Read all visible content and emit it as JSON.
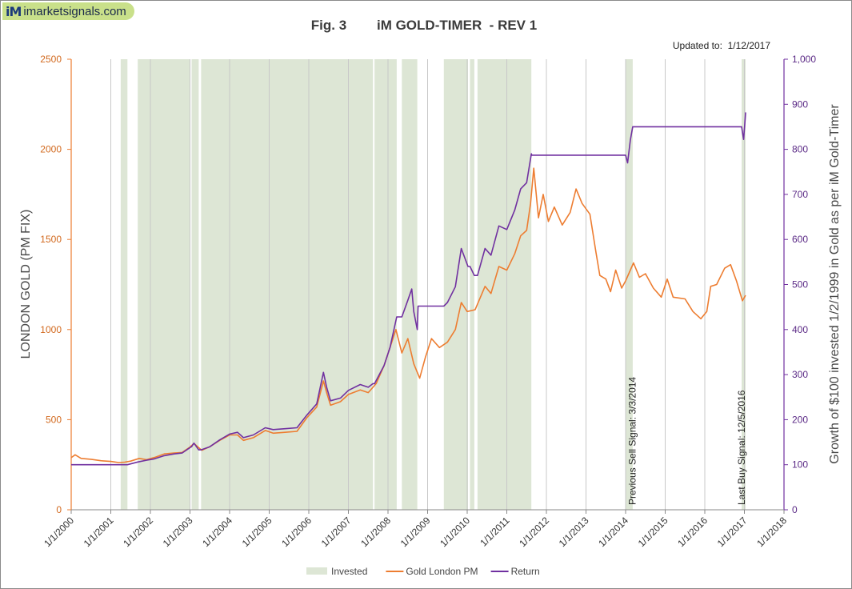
{
  "logo": {
    "mark": "iM",
    "site": "imarketsignals.com"
  },
  "chart_data": {
    "type": "line",
    "title": "Fig. 3        iM GOLD-TIMER  - REV 1",
    "updated_label": "Updated to:  1/12/2017",
    "ylabel_left": "LONDON GOLD (PM FIX)",
    "ylabel_right": "Growth of $100 invested 1/2/1999 in Gold as per iM Gold-Timer",
    "ylim_left": [
      0,
      2500
    ],
    "yticks_left": [
      "0",
      "500",
      "1000",
      "1500",
      "2000",
      "2500"
    ],
    "ylim_right": [
      0,
      1000
    ],
    "yticks_right": [
      "0",
      "100",
      "200",
      "300",
      "400",
      "500",
      "600",
      "700",
      "800",
      "900",
      "1,000"
    ],
    "xlim": [
      2000,
      2018
    ],
    "xticks": [
      "1/1/2000",
      "1/1/2001",
      "1/1/2002",
      "1/1/2003",
      "1/1/2004",
      "1/1/2005",
      "1/1/2006",
      "1/1/2007",
      "1/1/2008",
      "1/1/2009",
      "1/1/2010",
      "1/1/2011",
      "1/1/2012",
      "1/1/2013",
      "1/1/2014",
      "1/1/2015",
      "1/1/2016",
      "1/1/2017",
      "1/1/2018"
    ],
    "grid": "x-major",
    "legend_position": "bottom",
    "invested_periods": [
      [
        2001.25,
        2001.42
      ],
      [
        2001.68,
        2003.0
      ],
      [
        2003.04,
        2003.22
      ],
      [
        2003.28,
        2007.62
      ],
      [
        2007.66,
        2008.22
      ],
      [
        2008.35,
        2008.74
      ],
      [
        2009.41,
        2010.02
      ],
      [
        2010.07,
        2010.18
      ],
      [
        2010.26,
        2011.62
      ],
      [
        2014.0,
        2014.18
      ],
      [
        2016.93,
        2017.03
      ]
    ],
    "series": [
      {
        "name": "Gold London PM",
        "color": "#ed7d31",
        "axis": "left",
        "points": [
          [
            2000.0,
            289
          ],
          [
            2000.1,
            305
          ],
          [
            2000.25,
            285
          ],
          [
            2000.5,
            280
          ],
          [
            2000.75,
            272
          ],
          [
            2001.0,
            268
          ],
          [
            2001.2,
            262
          ],
          [
            2001.35,
            264
          ],
          [
            2001.5,
            270
          ],
          [
            2001.72,
            285
          ],
          [
            2001.9,
            278
          ],
          [
            2002.1,
            290
          ],
          [
            2002.35,
            310
          ],
          [
            2002.6,
            315
          ],
          [
            2002.8,
            318
          ],
          [
            2003.0,
            348
          ],
          [
            2003.1,
            368
          ],
          [
            2003.3,
            330
          ],
          [
            2003.5,
            350
          ],
          [
            2003.75,
            385
          ],
          [
            2004.0,
            415
          ],
          [
            2004.2,
            415
          ],
          [
            2004.35,
            385
          ],
          [
            2004.6,
            400
          ],
          [
            2004.9,
            440
          ],
          [
            2005.1,
            425
          ],
          [
            2005.4,
            430
          ],
          [
            2005.7,
            435
          ],
          [
            2005.95,
            510
          ],
          [
            2006.2,
            570
          ],
          [
            2006.37,
            715
          ],
          [
            2006.45,
            650
          ],
          [
            2006.55,
            580
          ],
          [
            2006.8,
            600
          ],
          [
            2007.0,
            640
          ],
          [
            2007.3,
            665
          ],
          [
            2007.5,
            650
          ],
          [
            2007.7,
            700
          ],
          [
            2007.9,
            800
          ],
          [
            2008.05,
            900
          ],
          [
            2008.2,
            1000
          ],
          [
            2008.35,
            870
          ],
          [
            2008.5,
            950
          ],
          [
            2008.65,
            810
          ],
          [
            2008.8,
            730
          ],
          [
            2008.95,
            850
          ],
          [
            2009.1,
            950
          ],
          [
            2009.3,
            900
          ],
          [
            2009.5,
            930
          ],
          [
            2009.7,
            1000
          ],
          [
            2009.85,
            1150
          ],
          [
            2010.0,
            1100
          ],
          [
            2010.2,
            1110
          ],
          [
            2010.45,
            1240
          ],
          [
            2010.6,
            1200
          ],
          [
            2010.8,
            1350
          ],
          [
            2011.0,
            1330
          ],
          [
            2011.2,
            1420
          ],
          [
            2011.35,
            1520
          ],
          [
            2011.5,
            1550
          ],
          [
            2011.6,
            1700
          ],
          [
            2011.68,
            1895
          ],
          [
            2011.8,
            1620
          ],
          [
            2011.92,
            1750
          ],
          [
            2012.05,
            1600
          ],
          [
            2012.2,
            1680
          ],
          [
            2012.4,
            1580
          ],
          [
            2012.6,
            1650
          ],
          [
            2012.75,
            1780
          ],
          [
            2012.9,
            1700
          ],
          [
            2013.1,
            1640
          ],
          [
            2013.25,
            1430
          ],
          [
            2013.35,
            1300
          ],
          [
            2013.5,
            1280
          ],
          [
            2013.62,
            1210
          ],
          [
            2013.75,
            1330
          ],
          [
            2013.9,
            1230
          ],
          [
            2014.0,
            1270
          ],
          [
            2014.2,
            1370
          ],
          [
            2014.35,
            1290
          ],
          [
            2014.5,
            1310
          ],
          [
            2014.7,
            1230
          ],
          [
            2014.9,
            1180
          ],
          [
            2015.05,
            1280
          ],
          [
            2015.2,
            1180
          ],
          [
            2015.5,
            1170
          ],
          [
            2015.7,
            1100
          ],
          [
            2015.9,
            1060
          ],
          [
            2016.05,
            1100
          ],
          [
            2016.15,
            1240
          ],
          [
            2016.3,
            1250
          ],
          [
            2016.5,
            1340
          ],
          [
            2016.65,
            1360
          ],
          [
            2016.8,
            1270
          ],
          [
            2016.95,
            1160
          ],
          [
            2017.03,
            1190
          ]
        ]
      },
      {
        "name": "Return",
        "color": "#7030a0",
        "axis": "right",
        "points": [
          [
            2000.0,
            100
          ],
          [
            2001.25,
            100
          ],
          [
            2001.42,
            100
          ],
          [
            2001.68,
            106
          ],
          [
            2001.9,
            110
          ],
          [
            2002.1,
            113
          ],
          [
            2002.35,
            120
          ],
          [
            2002.6,
            124
          ],
          [
            2002.8,
            126
          ],
          [
            2003.0,
            138
          ],
          [
            2003.04,
            140
          ],
          [
            2003.1,
            148
          ],
          [
            2003.22,
            133
          ],
          [
            2003.28,
            133
          ],
          [
            2003.5,
            140
          ],
          [
            2003.75,
            155
          ],
          [
            2004.0,
            168
          ],
          [
            2004.2,
            172
          ],
          [
            2004.35,
            160
          ],
          [
            2004.6,
            166
          ],
          [
            2004.9,
            182
          ],
          [
            2005.1,
            178
          ],
          [
            2005.4,
            180
          ],
          [
            2005.7,
            182
          ],
          [
            2005.95,
            210
          ],
          [
            2006.2,
            235
          ],
          [
            2006.37,
            305
          ],
          [
            2006.45,
            272
          ],
          [
            2006.55,
            242
          ],
          [
            2006.8,
            248
          ],
          [
            2007.0,
            265
          ],
          [
            2007.3,
            278
          ],
          [
            2007.5,
            272
          ],
          [
            2007.62,
            280
          ],
          [
            2007.66,
            280
          ],
          [
            2007.9,
            320
          ],
          [
            2008.05,
            360
          ],
          [
            2008.22,
            428
          ],
          [
            2008.35,
            428
          ],
          [
            2008.5,
            465
          ],
          [
            2008.6,
            490
          ],
          [
            2008.65,
            440
          ],
          [
            2008.74,
            400
          ],
          [
            2008.76,
            452
          ],
          [
            2009.41,
            452
          ],
          [
            2009.5,
            460
          ],
          [
            2009.7,
            495
          ],
          [
            2009.85,
            580
          ],
          [
            2010.02,
            540
          ],
          [
            2010.07,
            540
          ],
          [
            2010.18,
            520
          ],
          [
            2010.26,
            520
          ],
          [
            2010.45,
            580
          ],
          [
            2010.6,
            565
          ],
          [
            2010.8,
            630
          ],
          [
            2011.0,
            622
          ],
          [
            2011.2,
            665
          ],
          [
            2011.35,
            712
          ],
          [
            2011.5,
            726
          ],
          [
            2011.62,
            790
          ],
          [
            2011.63,
            787
          ],
          [
            2014.0,
            787
          ],
          [
            2014.05,
            770
          ],
          [
            2014.12,
            820
          ],
          [
            2014.18,
            850
          ],
          [
            2016.93,
            850
          ],
          [
            2016.98,
            822
          ],
          [
            2017.02,
            868
          ],
          [
            2017.03,
            882
          ]
        ]
      }
    ],
    "legend": [
      {
        "name": "Invested",
        "kind": "fill",
        "color": "#dde6d5"
      },
      {
        "name": "Gold London PM",
        "kind": "line",
        "color": "#ed7d31"
      },
      {
        "name": "Return",
        "kind": "line",
        "color": "#7030a0"
      }
    ],
    "annotations": [
      {
        "text": "Previous Sell Signal:  3/3/2014",
        "x": 2014.17,
        "y_left": 0
      },
      {
        "text": "Last Buy Signal:  12/5/2016",
        "x": 2016.93,
        "y_left": 0
      }
    ]
  }
}
